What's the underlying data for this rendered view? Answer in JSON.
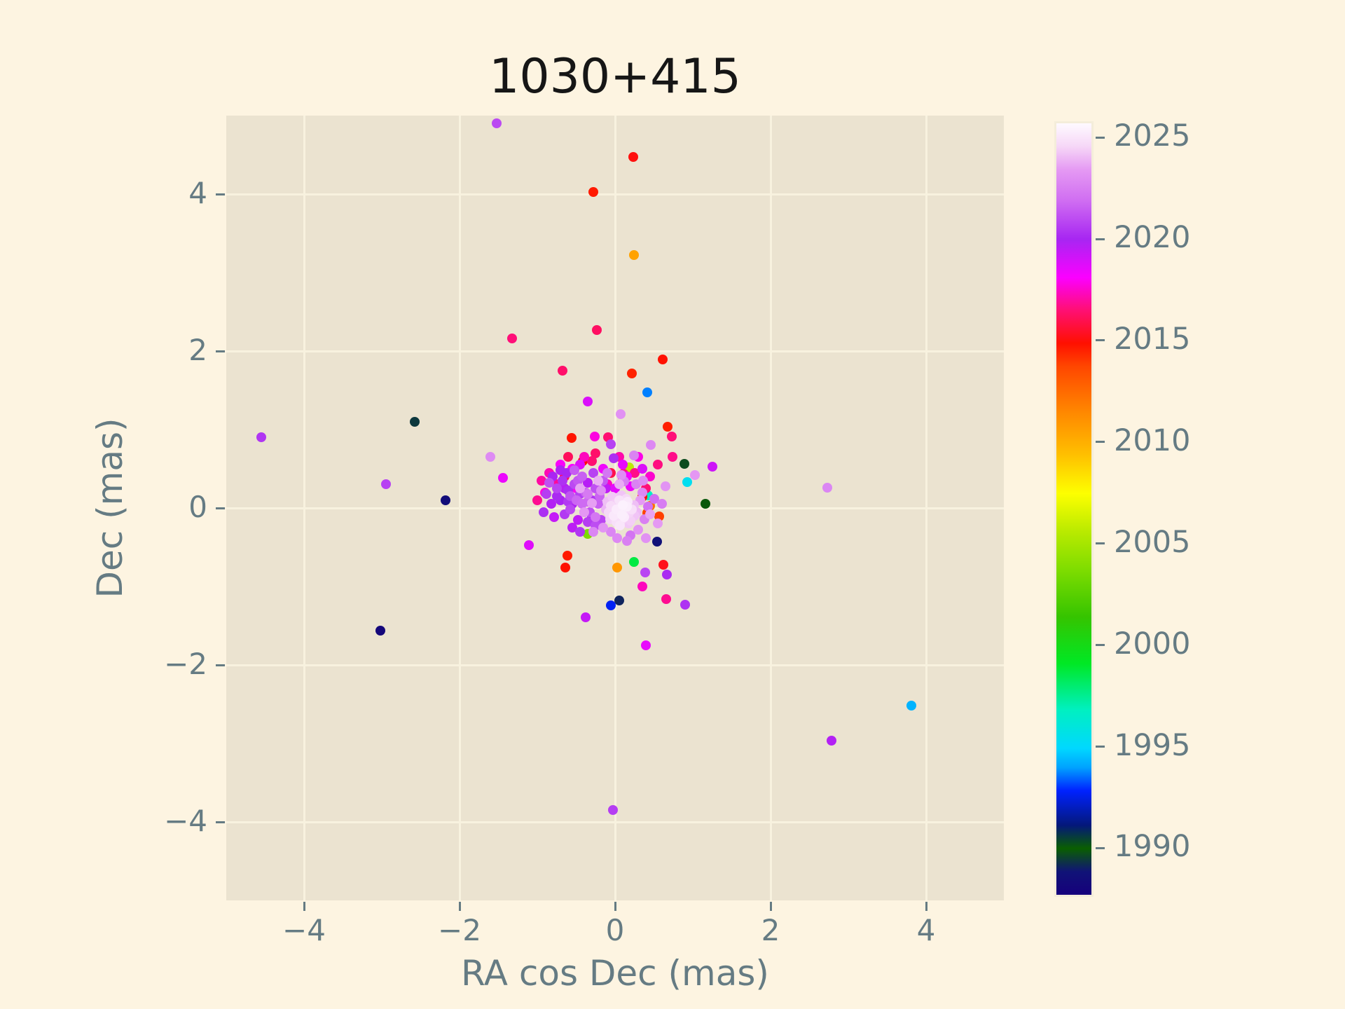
{
  "chart_data": {
    "type": "scatter",
    "title": "1030+415",
    "xlabel": "RA cos Dec (mas)",
    "ylabel": "Dec (mas)",
    "xlim": [
      -5,
      5
    ],
    "ylim": [
      -5,
      5
    ],
    "x_ticks": [
      -4,
      -2,
      0,
      2,
      4
    ],
    "y_ticks": [
      -4,
      -2,
      0,
      2,
      4
    ],
    "x_tick_labels": [
      "−4",
      "−2",
      "0",
      "2",
      "4"
    ],
    "y_tick_labels": [
      "−4",
      "−2",
      "0",
      "2",
      "4"
    ],
    "grid": true,
    "background_color": "#ebe3d0",
    "figure_color": "#fdf4e1",
    "grid_color": "#f8f2df",
    "tick_color": "#657b83",
    "title_color": "#161616",
    "marker_diameter_px": 14,
    "colorbar": {
      "vmin": 1987.6,
      "vmax": 2025.8,
      "tick_years": [
        2025,
        2020,
        2015,
        2010,
        2005,
        2000,
        1995,
        1990
      ],
      "tick_labels": [
        "2025",
        "2020",
        "2015",
        "2010",
        "2005",
        "2000",
        "1995",
        "1990"
      ],
      "stops": [
        {
          "t": 0.0,
          "c": "#16007c"
        },
        {
          "t": 0.03,
          "c": "#101377"
        },
        {
          "t": 0.06,
          "c": "#0a5f00"
        },
        {
          "t": 0.09,
          "c": "#04187a"
        },
        {
          "t": 0.135,
          "c": "#0022ff"
        },
        {
          "t": 0.165,
          "c": "#00a2ff"
        },
        {
          "t": 0.19,
          "c": "#00d8ff"
        },
        {
          "t": 0.24,
          "c": "#00f0c0"
        },
        {
          "t": 0.3,
          "c": "#00e824"
        },
        {
          "t": 0.36,
          "c": "#35c400"
        },
        {
          "t": 0.42,
          "c": "#7ddc00"
        },
        {
          "t": 0.47,
          "c": "#b8ea00"
        },
        {
          "t": 0.52,
          "c": "#fdff00"
        },
        {
          "t": 0.57,
          "c": "#ffc000"
        },
        {
          "t": 0.63,
          "c": "#ff8300"
        },
        {
          "t": 0.685,
          "c": "#ff4600"
        },
        {
          "t": 0.715,
          "c": "#ff1000"
        },
        {
          "t": 0.76,
          "c": "#ff0f7a"
        },
        {
          "t": 0.8,
          "c": "#fb00ff"
        },
        {
          "t": 0.85,
          "c": "#a726f2"
        },
        {
          "t": 0.9,
          "c": "#d06ef2"
        },
        {
          "t": 0.94,
          "c": "#e59af3"
        },
        {
          "t": 0.97,
          "c": "#f6d7f7"
        },
        {
          "t": 1.0,
          "c": "#fefaff"
        }
      ]
    },
    "points": [
      [
        -1.52,
        4.9,
        2021.0
      ],
      [
        0.23,
        4.47,
        2015.1
      ],
      [
        -0.28,
        4.03,
        2014.7
      ],
      [
        0.24,
        3.22,
        2010.5
      ],
      [
        -0.23,
        2.27,
        2016.3
      ],
      [
        -1.32,
        2.16,
        2016.6
      ],
      [
        -0.68,
        1.75,
        2016.4
      ],
      [
        0.61,
        1.89,
        2014.9
      ],
      [
        0.22,
        1.71,
        2014.5
      ],
      [
        0.41,
        1.47,
        1993.6
      ],
      [
        -0.35,
        1.36,
        2018.9
      ],
      [
        -2.58,
        1.1,
        1989.3
      ],
      [
        -4.55,
        0.9,
        2020.5
      ],
      [
        0.07,
        1.2,
        2023.2
      ],
      [
        -0.56,
        0.89,
        2014.8
      ],
      [
        -0.26,
        0.91,
        2017.8
      ],
      [
        0.68,
        1.04,
        2014.6
      ],
      [
        0.73,
        0.91,
        2016.6
      ],
      [
        -0.05,
        0.81,
        2020.8
      ],
      [
        0.46,
        0.8,
        2022.9
      ],
      [
        -1.6,
        0.65,
        2023.0
      ],
      [
        0.24,
        0.67,
        2022.7
      ],
      [
        -0.02,
        0.63,
        2020.3
      ],
      [
        -0.41,
        0.6,
        2015.0
      ],
      [
        0.74,
        0.65,
        2016.8
      ],
      [
        0.89,
        0.56,
        1989.6
      ],
      [
        0.18,
        0.52,
        2005.6
      ],
      [
        1.25,
        0.53,
        2019.2
      ],
      [
        0.93,
        0.33,
        1995.3
      ],
      [
        1.03,
        0.42,
        2023.4
      ],
      [
        2.73,
        0.26,
        2022.8
      ],
      [
        1.16,
        0.05,
        1990.0
      ],
      [
        -2.95,
        0.3,
        2020.8
      ],
      [
        -2.18,
        0.1,
        1988.3
      ],
      [
        -1.44,
        0.38,
        2018.5
      ],
      [
        0.42,
        0.16,
        1996.6
      ],
      [
        -1.11,
        -0.47,
        2018.8
      ],
      [
        -3.02,
        -1.56,
        1988.0
      ],
      [
        0.54,
        -0.43,
        1988.6
      ],
      [
        0.24,
        -0.69,
        1998.6
      ],
      [
        0.03,
        -0.76,
        2010.9
      ],
      [
        0.05,
        -1.18,
        1989.0
      ],
      [
        -0.05,
        -1.24,
        1992.6
      ],
      [
        0.66,
        -1.16,
        2016.9
      ],
      [
        0.9,
        -1.23,
        2020.4
      ],
      [
        0.4,
        -1.75,
        2018.6
      ],
      [
        -0.38,
        -1.39,
        2019.4
      ],
      [
        3.81,
        -2.52,
        1994.2
      ],
      [
        2.78,
        -2.96,
        2019.8
      ],
      [
        -0.03,
        -3.85,
        2020.7
      ],
      [
        -0.35,
        -0.33,
        2003.6
      ],
      [
        -0.61,
        -0.61,
        2014.7
      ],
      [
        -0.64,
        -0.76,
        2014.9
      ],
      [
        0.62,
        -0.72,
        2015.3
      ],
      [
        0.39,
        -0.82,
        2020.9
      ],
      [
        0.67,
        -0.85,
        2020.2
      ],
      [
        0.35,
        -1.0,
        2017.4
      ],
      [
        0.1,
        0.38,
        2016.2
      ],
      [
        0.35,
        0.14,
        2014.9
      ],
      [
        0.57,
        -0.11,
        2013.9
      ],
      [
        0.45,
        0.03,
        2012.3
      ],
      [
        0.11,
        0.44,
        2016.7
      ],
      [
        -0.09,
        0.9,
        2016.5
      ],
      [
        0.41,
        -0.06,
        2013.8
      ],
      [
        -0.1,
        0.3,
        2017.5
      ],
      [
        0.25,
        0.45,
        2016.8
      ],
      [
        -0.55,
        0.5,
        2018.2
      ],
      [
        -0.75,
        0.3,
        2017.0
      ],
      [
        0.1,
        0.55,
        2018.6
      ],
      [
        -0.3,
        0.6,
        2016.5
      ],
      [
        -0.9,
        0.2,
        2017.8
      ],
      [
        0.35,
        0.5,
        2018.9
      ],
      [
        -0.6,
        0.65,
        2016.2
      ],
      [
        -0.15,
        0.5,
        2018.4
      ],
      [
        0.05,
        0.65,
        2017.2
      ],
      [
        -0.45,
        0.55,
        2018.8
      ],
      [
        -1.0,
        0.1,
        2016.9
      ],
      [
        0.45,
        0.4,
        2017.6
      ],
      [
        -0.7,
        0.55,
        2018.1
      ],
      [
        -0.25,
        0.7,
        2016.4
      ],
      [
        0.2,
        0.28,
        2018.5
      ],
      [
        -0.85,
        0.45,
        2017.3
      ],
      [
        0.55,
        0.55,
        2016.7
      ],
      [
        -0.5,
        0.25,
        2018.0
      ],
      [
        -0.05,
        0.45,
        2016.0
      ],
      [
        0.3,
        0.65,
        2017.9
      ],
      [
        -0.65,
        0.4,
        2016.3
      ],
      [
        0.15,
        0.4,
        2018.3
      ],
      [
        -0.95,
        0.35,
        2017.1
      ],
      [
        0.4,
        0.25,
        2016.6
      ],
      [
        -0.4,
        0.65,
        2017.4
      ],
      [
        0.0,
        0.25,
        2018.7
      ],
      [
        -0.3,
        0.1,
        2020.5
      ],
      [
        -0.45,
        0.18,
        2020.8
      ],
      [
        -0.55,
        0.05,
        2019.9
      ],
      [
        -0.25,
        0.25,
        2021.2
      ],
      [
        -0.6,
        0.22,
        2020.3
      ],
      [
        -0.4,
        -0.05,
        2021.5
      ],
      [
        -0.7,
        0.1,
        2020.0
      ],
      [
        -0.35,
        0.32,
        2019.7
      ],
      [
        -0.52,
        0.3,
        2021.0
      ],
      [
        -0.65,
        -0.08,
        2020.6
      ],
      [
        -0.2,
        0.15,
        2021.7
      ],
      [
        -0.48,
        -0.15,
        2019.5
      ],
      [
        -0.75,
        0.25,
        2020.9
      ],
      [
        -0.58,
        0.15,
        2021.3
      ],
      [
        -0.3,
        -0.12,
        2020.2
      ],
      [
        -0.82,
        0.05,
        2019.8
      ],
      [
        -0.42,
        0.4,
        2021.6
      ],
      [
        -0.68,
        0.35,
        2020.4
      ],
      [
        -0.25,
        -0.22,
        2021.1
      ],
      [
        -0.55,
        -0.25,
        2019.6
      ],
      [
        -0.88,
        0.18,
        2020.7
      ],
      [
        -0.35,
        0.08,
        2021.9
      ],
      [
        -0.62,
        0.45,
        2020.1
      ],
      [
        -0.15,
        0.35,
        2021.4
      ],
      [
        -0.78,
        -0.12,
        2019.4
      ],
      [
        -0.5,
        0.1,
        2021.8
      ],
      [
        -0.28,
        0.45,
        2020.8
      ],
      [
        -0.85,
        0.32,
        2021.2
      ],
      [
        -0.45,
        -0.3,
        2020.5
      ],
      [
        -0.22,
        0.05,
        2021.6
      ],
      [
        -0.7,
        0.48,
        2019.9
      ],
      [
        -0.58,
        -0.02,
        2021.0
      ],
      [
        -0.92,
        -0.05,
        2020.3
      ],
      [
        -0.38,
        0.2,
        2021.7
      ],
      [
        -0.65,
        0.25,
        2019.7
      ],
      [
        -0.18,
        -0.15,
        2020.9
      ],
      [
        -0.48,
        0.35,
        2021.4
      ],
      [
        -0.8,
        0.4,
        2020.0
      ],
      [
        -0.32,
        -0.05,
        2021.2
      ],
      [
        -0.6,
        0.08,
        2020.6
      ],
      [
        -0.12,
        0.25,
        2019.5
      ],
      [
        -0.42,
        0.05,
        2021.9
      ],
      [
        -0.75,
        0.15,
        2020.2
      ],
      [
        -0.52,
        0.48,
        2021.5
      ],
      [
        -0.35,
        -0.18,
        2020.7
      ],
      [
        0.32,
        0.1,
        2023.5
      ],
      [
        -0.18,
        0.22,
        2023.0
      ],
      [
        0.38,
        -0.14,
        2022.6
      ],
      [
        0.05,
        0.3,
        2023.8
      ],
      [
        -0.25,
        -0.12,
        2022.3
      ],
      [
        0.3,
        -0.28,
        2023.2
      ],
      [
        -0.05,
        -0.3,
        2022.8
      ],
      [
        0.42,
        0.02,
        2022.1
      ],
      [
        0.12,
        0.34,
        2022.5
      ],
      [
        -0.3,
        0.06,
        2023.6
      ],
      [
        0.35,
        0.2,
        2022.9
      ],
      [
        -0.15,
        -0.25,
        2023.3
      ],
      [
        0.2,
        -0.35,
        2022.2
      ],
      [
        0.45,
        -0.08,
        2023.7
      ],
      [
        -0.35,
        0.18,
        2022.4
      ],
      [
        0.08,
        0.42,
        2023.1
      ],
      [
        0.27,
        0.3,
        2022.7
      ],
      [
        -0.22,
        0.35,
        2023.9
      ],
      [
        0.5,
        0.12,
        2022.0
      ],
      [
        -0.4,
        -0.05,
        2023.4
      ],
      [
        0.15,
        -0.42,
        2022.6
      ],
      [
        0.36,
        0.35,
        2023.0
      ],
      [
        -0.1,
        0.45,
        2022.3
      ],
      [
        0.55,
        -0.2,
        2023.5
      ],
      [
        -0.28,
        -0.3,
        2022.8
      ],
      [
        0.4,
        -0.38,
        2023.2
      ],
      [
        0.6,
        0.05,
        2022.5
      ],
      [
        -0.45,
        0.25,
        2023.7
      ],
      [
        0.65,
        0.28,
        2023.3
      ],
      [
        0.03,
        -0.38,
        2022.9
      ],
      [
        0.02,
        -0.02,
        2025.3
      ],
      [
        0.1,
        -0.08,
        2025.1
      ],
      [
        -0.05,
        0.03,
        2024.8
      ],
      [
        0.15,
        0.02,
        2025.4
      ],
      [
        0.08,
        -0.15,
        2024.9
      ],
      [
        -0.02,
        -0.1,
        2025.2
      ],
      [
        0.18,
        -0.06,
        2024.6
      ],
      [
        0.05,
        0.1,
        2025.0
      ],
      [
        -0.08,
        -0.05,
        2024.7
      ],
      [
        0.12,
        -0.12,
        2025.3
      ],
      [
        0.0,
        0.05,
        2024.5
      ],
      [
        0.22,
        -0.02,
        2024.9
      ],
      [
        0.06,
        -0.22,
        2025.1
      ],
      [
        -0.04,
        0.14,
        2024.4
      ],
      [
        0.16,
        0.08,
        2025.2
      ],
      [
        0.25,
        -0.1,
        2024.3
      ],
      [
        0.1,
        0.04,
        2025.5
      ],
      [
        -0.1,
        0.08,
        2024.2
      ],
      [
        0.03,
        -0.06,
        2025.0
      ],
      [
        0.2,
        -0.16,
        2024.5
      ],
      [
        0.13,
        -0.03,
        2024.8
      ],
      [
        -0.06,
        -0.14,
        2024.6
      ],
      [
        0.08,
        0.16,
        2024.3
      ],
      [
        0.28,
        -0.05,
        2024.1
      ],
      [
        0.02,
        -0.18,
        2024.9
      ],
      [
        0.17,
        -0.2,
        2024.4
      ],
      [
        -0.12,
        -0.02,
        2024.0
      ],
      [
        0.09,
        -0.09,
        2025.4
      ],
      [
        0.24,
        0.04,
        2024.2
      ],
      [
        0.14,
        0.12,
        2024.7
      ]
    ]
  }
}
